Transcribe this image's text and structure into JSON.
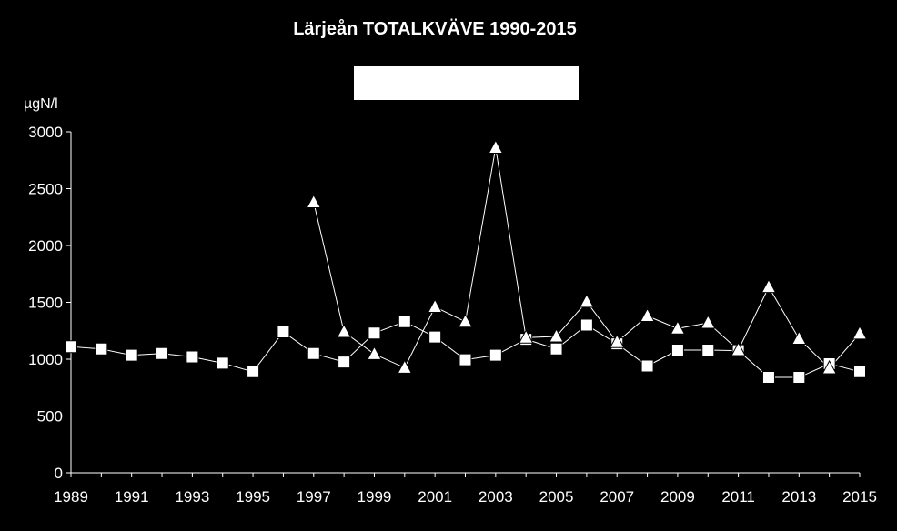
{
  "chart_data": {
    "type": "line",
    "title": "Lärjeån TOTALKVÄVE 1990-2015",
    "unit_label": "µgN/l",
    "xlim": [
      1989,
      2015
    ],
    "ylim": [
      0,
      3000
    ],
    "yticks": [
      0,
      500,
      1000,
      1500,
      2000,
      2500,
      3000
    ],
    "xticks": [
      1989,
      1991,
      1993,
      1995,
      1997,
      1999,
      2001,
      2003,
      2005,
      2007,
      2009,
      2011,
      2013,
      2015
    ],
    "grid": false,
    "legend": "top-center, blank",
    "x": [
      1989,
      1990,
      1991,
      1992,
      1993,
      1994,
      1995,
      1996,
      1997,
      1998,
      1999,
      2000,
      2001,
      2002,
      2003,
      2004,
      2005,
      2006,
      2007,
      2008,
      2009,
      2010,
      2011,
      2012,
      2013,
      2014,
      2015
    ],
    "series": [
      {
        "marker": "square",
        "values": [
          1110,
          1090,
          1035,
          1050,
          1020,
          965,
          890,
          1240,
          1050,
          975,
          1230,
          1330,
          1195,
          995,
          1035,
          1175,
          1090,
          1300,
          1135,
          940,
          1080,
          1080,
          1075,
          840,
          840,
          960,
          890
        ]
      },
      {
        "marker": "triangle",
        "values": [
          null,
          null,
          null,
          null,
          null,
          null,
          null,
          null,
          2380,
          1240,
          1045,
          925,
          1460,
          1330,
          2860,
          1190,
          1200,
          1505,
          1150,
          1380,
          1270,
          1320,
          1080,
          1635,
          1180,
          920,
          1225
        ]
      }
    ],
    "colors": {
      "background": "#000000",
      "foreground": "#ffffff"
    }
  }
}
